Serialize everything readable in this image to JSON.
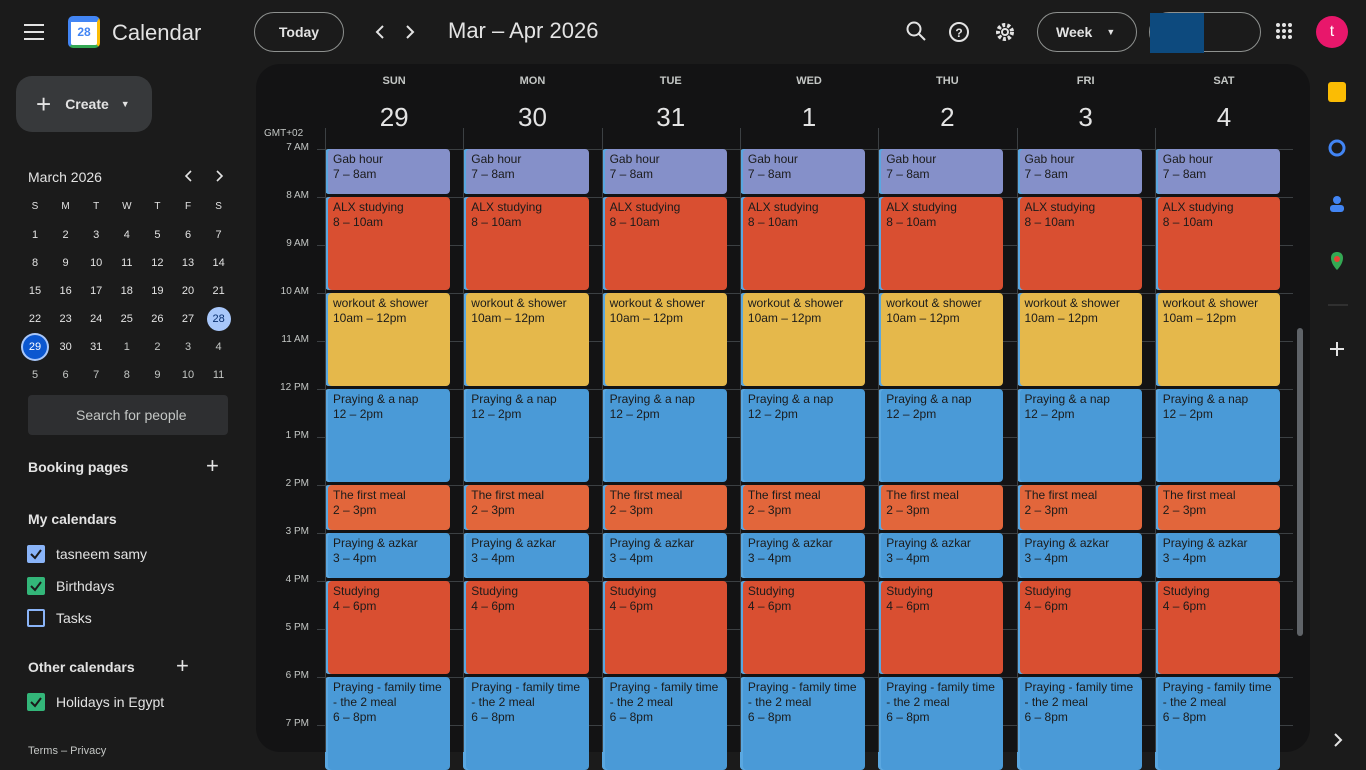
{
  "header": {
    "logo_day": "28",
    "app_name": "Calendar",
    "today_button": "Today",
    "date_range": "Mar – Apr 2026",
    "view": "Week",
    "avatar": "t"
  },
  "sidebar": {
    "create": "Create",
    "mini_calendar": {
      "title": "March 2026",
      "weekdays": [
        "S",
        "M",
        "T",
        "W",
        "T",
        "F",
        "S"
      ],
      "weeks": [
        [
          "1",
          "2",
          "3",
          "4",
          "5",
          "6",
          "7"
        ],
        [
          "8",
          "9",
          "10",
          "11",
          "12",
          "13",
          "14"
        ],
        [
          "15",
          "16",
          "17",
          "18",
          "19",
          "20",
          "21"
        ],
        [
          "22",
          "23",
          "24",
          "25",
          "26",
          "27",
          "28"
        ],
        [
          "29",
          "30",
          "31",
          "1",
          "2",
          "3",
          "4"
        ],
        [
          "5",
          "6",
          "7",
          "8",
          "9",
          "10",
          "11"
        ]
      ]
    },
    "search_people": "Search for people",
    "booking_pages": "Booking pages",
    "my_calendars": {
      "title": "My calendars",
      "items": [
        {
          "name": "tasneem samy",
          "color": "#8ab4f8"
        },
        {
          "name": "Birthdays",
          "color": "#33b679"
        },
        {
          "name": "Tasks",
          "color": ""
        }
      ]
    },
    "other_calendars": {
      "title": "Other calendars",
      "items": [
        {
          "name": "Holidays in Egypt",
          "color": "#33b679"
        }
      ]
    },
    "footer": "Terms – Privacy"
  },
  "week": {
    "timezone": "GMT+02",
    "days": [
      {
        "name": "SUN",
        "date": "29"
      },
      {
        "name": "MON",
        "date": "30"
      },
      {
        "name": "TUE",
        "date": "31"
      },
      {
        "name": "WED",
        "date": "1"
      },
      {
        "name": "THU",
        "date": "2"
      },
      {
        "name": "FRI",
        "date": "3"
      },
      {
        "name": "SAT",
        "date": "4"
      }
    ],
    "hours": [
      "7 AM",
      "8 AM",
      "9 AM",
      "10 AM",
      "11 AM",
      "12 PM",
      "1 PM",
      "2 PM",
      "3 PM",
      "4 PM",
      "5 PM",
      "6 PM",
      "7 PM"
    ],
    "events": [
      {
        "title": "Gab hour",
        "time": "7 – 8am",
        "color": "#8590c9"
      },
      {
        "title": "ALX studying",
        "time": "8 – 10am",
        "color": "#d94f31"
      },
      {
        "title": "workout & shower",
        "time": "10am – 12pm",
        "color": "#e5b84b"
      },
      {
        "title": "Praying & a nap",
        "time": "12 – 2pm",
        "color": "#4a9ad7"
      },
      {
        "title": "The first meal",
        "time": "2 – 3pm",
        "color": "#e2663b"
      },
      {
        "title": "Praying & azkar",
        "time": "3 – 4pm",
        "color": "#4a9ad7"
      },
      {
        "title": "Studying",
        "time": "4 – 6pm",
        "color": "#d94f31"
      },
      {
        "title": "Praying - family time - the 2 meal",
        "time": "6 – 8pm",
        "color": "#4a9ad7"
      }
    ]
  }
}
